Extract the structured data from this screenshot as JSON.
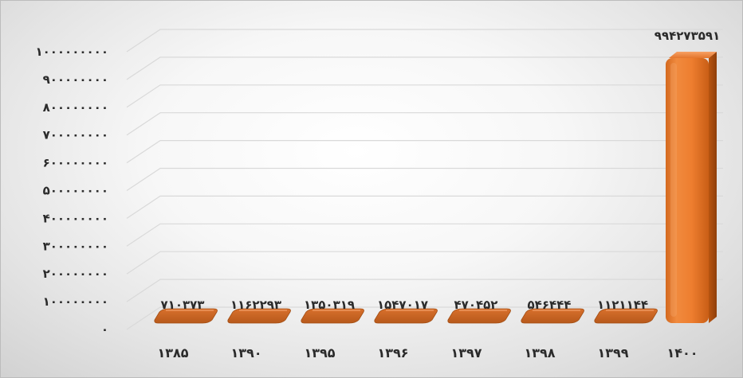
{
  "chart_data": {
    "type": "bar",
    "title": "",
    "xlabel": "",
    "ylabel": "",
    "ylim": [
      0,
      1000000000
    ],
    "y_ticks": [
      0,
      100000000,
      200000000,
      300000000,
      400000000,
      500000000,
      600000000,
      700000000,
      800000000,
      900000000,
      1000000000
    ],
    "y_tick_labels": [
      "۰",
      "۱۰۰۰۰۰۰۰۰",
      "۲۰۰۰۰۰۰۰۰",
      "۳۰۰۰۰۰۰۰۰",
      "۴۰۰۰۰۰۰۰۰",
      "۵۰۰۰۰۰۰۰۰",
      "۶۰۰۰۰۰۰۰۰",
      "۷۰۰۰۰۰۰۰۰",
      "۸۰۰۰۰۰۰۰۰",
      "۹۰۰۰۰۰۰۰۰",
      "۱۰۰۰۰۰۰۰۰۰"
    ],
    "categories": [
      "۱۳۸۵",
      "۱۳۹۰",
      "۱۳۹۵",
      "۱۳۹۶",
      "۱۳۹۷",
      "۱۳۹۸",
      "۱۳۹۹",
      "۱۴۰۰"
    ],
    "values": [
      710373,
      1162293,
      1350319,
      1547017,
      470452,
      546444,
      1121144,
      994273591
    ],
    "data_labels": [
      "۷۱۰۳۷۳",
      "۱۱۶۲۲۹۳",
      "۱۳۵۰۳۱۹",
      "۱۵۴۷۰۱۷",
      "۴۷۰۴۵۲",
      "۵۴۶۴۴۴",
      "۱۱۲۱۱۴۴",
      "۹۹۴۲۷۳۵۹۱"
    ],
    "grid": true,
    "legend": "none",
    "bar_color": "#ED7D31"
  }
}
